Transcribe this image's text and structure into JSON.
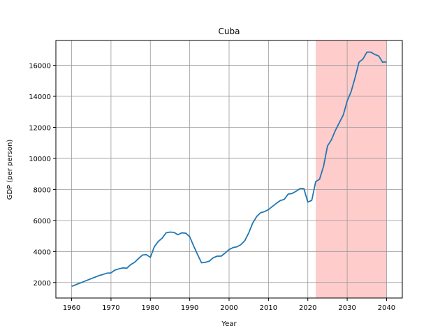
{
  "chart_data": {
    "type": "line",
    "title": "Cuba",
    "xlabel": "Year",
    "ylabel": "GDP (per person)",
    "xlim": [
      1956,
      2044
    ],
    "ylim": [
      1000,
      17600
    ],
    "xticks": [
      1960,
      1970,
      1980,
      1990,
      2000,
      2010,
      2020,
      2030,
      2040
    ],
    "yticks": [
      2000,
      4000,
      6000,
      8000,
      10000,
      12000,
      14000,
      16000
    ],
    "grid": true,
    "line_color": "#1f77b4",
    "shaded_region": {
      "x_start": 2022,
      "x_end": 2040,
      "color": "#ffcccc"
    },
    "series": [
      {
        "x": [
          1960,
          1961,
          1962,
          1963,
          1964,
          1965,
          1966,
          1967,
          1968,
          1969,
          1970,
          1971,
          1972,
          1973,
          1974,
          1975,
          1976,
          1977,
          1978,
          1979,
          1980,
          1981,
          1982,
          1983,
          1984,
          1985,
          1986,
          1987,
          1988,
          1989,
          1990,
          1991,
          1992,
          1993,
          1994,
          1995,
          1996,
          1997,
          1998,
          1999,
          2000,
          2001,
          2002,
          2003,
          2004,
          2005,
          2006,
          2007,
          2008,
          2009,
          2010,
          2011,
          2012,
          2013,
          2014,
          2015,
          2016,
          2017,
          2018,
          2019,
          2020,
          2021,
          2022,
          2023,
          2024,
          2025,
          2026,
          2027,
          2028,
          2029,
          2030,
          2031,
          2032,
          2033,
          2034,
          2035,
          2036,
          2037,
          2038,
          2039,
          2040
        ],
        "values": [
          1750,
          1850,
          1950,
          2050,
          2150,
          2250,
          2350,
          2450,
          2520,
          2600,
          2620,
          2800,
          2880,
          2940,
          2920,
          3150,
          3300,
          3550,
          3770,
          3800,
          3620,
          4300,
          4640,
          4860,
          5200,
          5250,
          5230,
          5080,
          5200,
          5180,
          4950,
          4350,
          3800,
          3270,
          3300,
          3380,
          3600,
          3700,
          3700,
          3900,
          4120,
          4250,
          4300,
          4440,
          4700,
          5200,
          5830,
          6250,
          6500,
          6570,
          6700,
          6900,
          7100,
          7280,
          7350,
          7700,
          7740,
          7880,
          8050,
          8050,
          7180,
          7300,
          8500,
          8660,
          9500,
          10800,
          11200,
          11800,
          12300,
          12800,
          13700,
          14300,
          15200,
          16200,
          16400,
          16850,
          16850,
          16700,
          16600,
          16200,
          16220
        ]
      }
    ]
  }
}
